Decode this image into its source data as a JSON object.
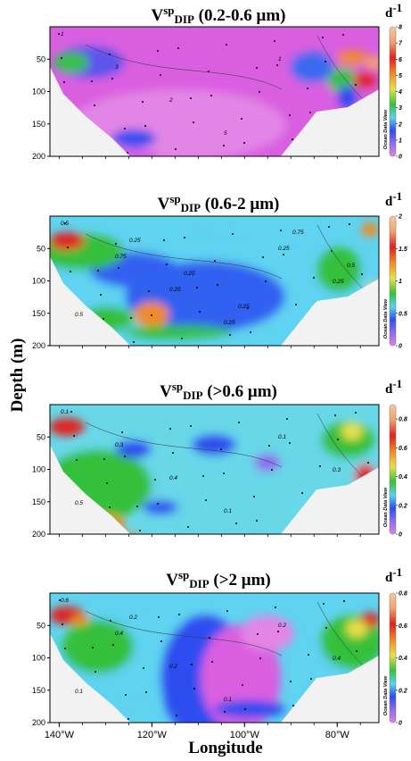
{
  "figure": {
    "ylabel": "Depth (m)",
    "xlabel": "Longitude",
    "watermark": "Ocean Data View"
  },
  "chart_data": [
    {
      "type": "heatmap",
      "title_main": "V",
      "title_sup": "sp",
      "title_sub": "DIP",
      "title_rest": " (0.2-0.6 μm)",
      "unit_main": "d",
      "unit_sup": "-1",
      "colorbar_ticks": [
        "8",
        "7",
        "6",
        "5",
        "4",
        "3",
        "2",
        "1",
        "0"
      ],
      "colorbar_range": [
        0,
        8
      ],
      "contour_labels": [
        "1",
        "3",
        "2",
        "5",
        "1"
      ],
      "yticks": [
        "50",
        "100",
        "150",
        "200"
      ],
      "xticks": [],
      "ylim": [
        200,
        0
      ],
      "xlim": [
        -142,
        -71
      ]
    },
    {
      "type": "heatmap",
      "title_main": "V",
      "title_sup": "sp",
      "title_sub": "DIP",
      "title_rest": " (0.6-2 μm)",
      "unit_main": "d",
      "unit_sup": "-1",
      "colorbar_ticks": [
        "2",
        "1.5",
        "1",
        "0.5",
        "0"
      ],
      "colorbar_range": [
        0,
        2
      ],
      "contour_labels": [
        "0.5",
        "0.75",
        "0.25",
        "0.25",
        "0.25",
        "0.25",
        "0.5",
        "0.25",
        "0.25",
        "0.25",
        "0.75",
        "0.5"
      ],
      "yticks": [
        "50",
        "100",
        "150",
        "200"
      ],
      "xticks": [],
      "ylim": [
        200,
        0
      ],
      "xlim": [
        -142,
        -71
      ]
    },
    {
      "type": "heatmap",
      "title_main": "V",
      "title_sup": "sp",
      "title_sub": "DIP",
      "title_rest": " (>0.6 μm)",
      "unit_main": "d",
      "unit_sup": "-1",
      "colorbar_ticks": [
        "0.8",
        "0.6",
        "0.4",
        "0.2",
        "0"
      ],
      "colorbar_range": [
        0,
        0.9
      ],
      "contour_labels": [
        "0.1",
        "0.3",
        "0.4",
        "0.1",
        "0.1",
        "0.3",
        "0.5"
      ],
      "yticks": [
        "50",
        "100",
        "150",
        "200"
      ],
      "xticks": [],
      "ylim": [
        200,
        0
      ],
      "xlim": [
        -142,
        -71
      ]
    },
    {
      "type": "heatmap",
      "title_main": "V",
      "title_sup": "sp",
      "title_sub": "DIP",
      "title_rest": " (>2 μm)",
      "unit_main": "d",
      "unit_sup": "-1",
      "colorbar_ticks": [
        "0.8",
        "0.6",
        "0.4",
        "0.2",
        "0"
      ],
      "colorbar_range": [
        0,
        0.8
      ],
      "contour_labels": [
        "0.6",
        "0.4",
        "0.2",
        "0.1",
        "0.2",
        "0.4",
        "0.1",
        "0.2"
      ],
      "yticks": [
        "50",
        "100",
        "150",
        "200"
      ],
      "xticks": [
        "140°W",
        "120°W",
        "100°W",
        "80°W"
      ],
      "ylim": [
        200,
        0
      ],
      "xlim": [
        -142,
        -71
      ]
    }
  ]
}
